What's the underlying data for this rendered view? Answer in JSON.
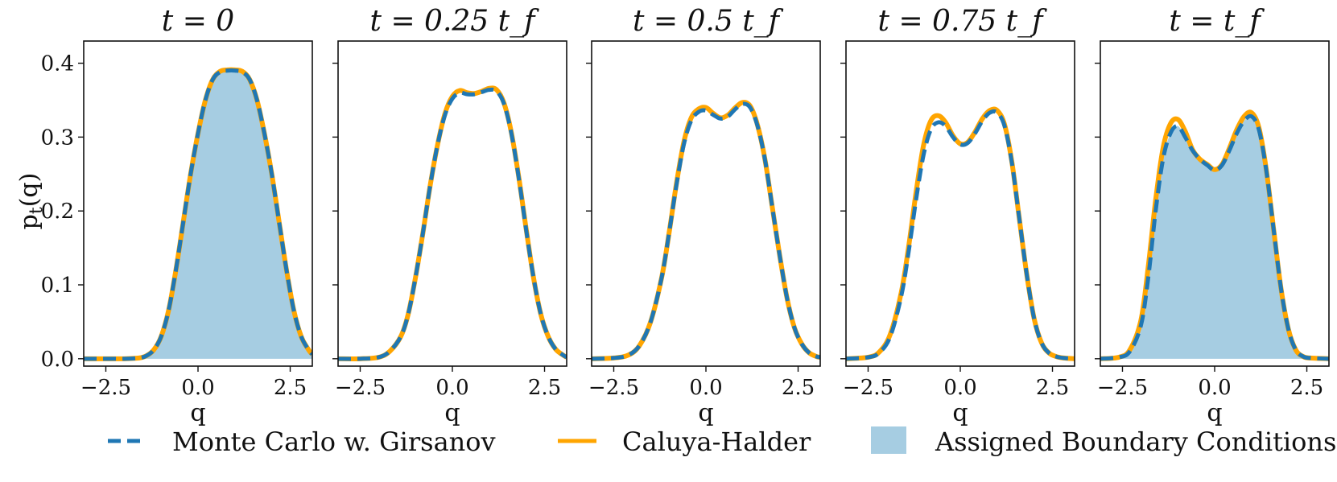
{
  "figure": {
    "ylabel": "p_t(q)",
    "legend": {
      "placement": "bottom",
      "entries": [
        {
          "label": "Monte Carlo w. Girsanov",
          "style": "dashed",
          "color": "#1f77b4"
        },
        {
          "label": "Caluya-Halder",
          "style": "solid",
          "color": "#ffa500"
        },
        {
          "label": "Assigned Boundary Conditions",
          "style": "fill",
          "color": "#a6cde2"
        }
      ]
    }
  },
  "chart_data": [
    {
      "type": "line",
      "title": "t = 0",
      "xlabel": "q",
      "ylabel": "p_t(q)",
      "xlim": [
        -3.1,
        3.1
      ],
      "ylim": [
        -0.01,
        0.43
      ],
      "xticks": [
        -2.5,
        0.0,
        2.5
      ],
      "xtick_labels": [
        "−2.5",
        "0.0",
        "2.5"
      ],
      "yticks": [
        0.0,
        0.1,
        0.2,
        0.3,
        0.4
      ],
      "ytick_labels": [
        "0.0",
        "0.1",
        "0.2",
        "0.3",
        "0.4"
      ],
      "shaded_boundary": true,
      "x": [
        -3.1,
        -2.5,
        -2.0,
        -1.6,
        -1.4,
        -1.2,
        -1.0,
        -0.8,
        -0.6,
        -0.4,
        -0.2,
        0.0,
        0.2,
        0.4,
        0.6,
        0.8,
        1.0,
        1.2,
        1.4,
        1.6,
        1.8,
        2.0,
        2.2,
        2.4,
        2.6,
        2.8,
        3.0,
        3.1
      ],
      "series": [
        {
          "name": "Monte Carlo w. Girsanov",
          "values": [
            0.0,
            0.0,
            0.0,
            0.001,
            0.004,
            0.012,
            0.03,
            0.065,
            0.12,
            0.185,
            0.25,
            0.305,
            0.35,
            0.378,
            0.388,
            0.39,
            0.39,
            0.388,
            0.378,
            0.35,
            0.305,
            0.25,
            0.185,
            0.12,
            0.065,
            0.03,
            0.012,
            0.006
          ]
        },
        {
          "name": "Caluya-Halder",
          "values": [
            0.0,
            0.0,
            0.0,
            0.001,
            0.004,
            0.012,
            0.03,
            0.065,
            0.12,
            0.185,
            0.25,
            0.305,
            0.35,
            0.378,
            0.389,
            0.391,
            0.391,
            0.389,
            0.378,
            0.35,
            0.305,
            0.25,
            0.185,
            0.12,
            0.065,
            0.03,
            0.012,
            0.006
          ]
        }
      ]
    },
    {
      "type": "line",
      "title": "t = 0.25 t_f",
      "xlabel": "q",
      "ylabel": "",
      "xlim": [
        -3.1,
        3.1
      ],
      "ylim": [
        -0.01,
        0.43
      ],
      "xticks": [
        -2.5,
        0.0,
        2.5
      ],
      "xtick_labels": [
        "−2.5",
        "0.0",
        "2.5"
      ],
      "yticks": [
        0.0,
        0.1,
        0.2,
        0.3,
        0.4
      ],
      "ytick_labels": [],
      "shaded_boundary": false,
      "x": [
        -3.1,
        -2.5,
        -2.0,
        -1.7,
        -1.4,
        -1.2,
        -1.0,
        -0.8,
        -0.6,
        -0.4,
        -0.2,
        0.0,
        0.2,
        0.4,
        0.6,
        0.8,
        1.0,
        1.2,
        1.4,
        1.6,
        1.8,
        2.0,
        2.2,
        2.4,
        2.6,
        2.8,
        3.0,
        3.1
      ],
      "series": [
        {
          "name": "Monte Carlo w. Girsanov",
          "values": [
            0.0,
            0.0,
            0.002,
            0.01,
            0.03,
            0.06,
            0.11,
            0.17,
            0.235,
            0.29,
            0.33,
            0.352,
            0.36,
            0.358,
            0.358,
            0.361,
            0.364,
            0.362,
            0.345,
            0.305,
            0.245,
            0.175,
            0.11,
            0.06,
            0.03,
            0.013,
            0.005,
            0.002
          ]
        },
        {
          "name": "Caluya-Halder",
          "values": [
            0.0,
            0.0,
            0.002,
            0.01,
            0.03,
            0.06,
            0.11,
            0.17,
            0.235,
            0.29,
            0.332,
            0.355,
            0.363,
            0.36,
            0.359,
            0.362,
            0.366,
            0.364,
            0.346,
            0.306,
            0.246,
            0.176,
            0.11,
            0.06,
            0.03,
            0.013,
            0.005,
            0.002
          ]
        }
      ]
    },
    {
      "type": "line",
      "title": "t = 0.5 t_f",
      "xlabel": "q",
      "ylabel": "",
      "xlim": [
        -3.1,
        3.1
      ],
      "ylim": [
        -0.01,
        0.43
      ],
      "xticks": [
        -2.5,
        0.0,
        2.5
      ],
      "xtick_labels": [
        "−2.5",
        "0.0",
        "2.5"
      ],
      "yticks": [
        0.0,
        0.1,
        0.2,
        0.3,
        0.4
      ],
      "ytick_labels": [],
      "shaded_boundary": false,
      "x": [
        -3.1,
        -2.5,
        -2.1,
        -1.8,
        -1.5,
        -1.2,
        -1.0,
        -0.8,
        -0.6,
        -0.4,
        -0.2,
        0.0,
        0.2,
        0.4,
        0.6,
        0.8,
        1.0,
        1.2,
        1.4,
        1.6,
        1.8,
        2.0,
        2.2,
        2.4,
        2.6,
        2.8,
        3.0,
        3.1
      ],
      "series": [
        {
          "name": "Monte Carlo w. Girsanov",
          "values": [
            0.0,
            0.001,
            0.005,
            0.018,
            0.05,
            0.11,
            0.17,
            0.235,
            0.29,
            0.322,
            0.334,
            0.336,
            0.33,
            0.325,
            0.328,
            0.338,
            0.345,
            0.34,
            0.315,
            0.27,
            0.205,
            0.14,
            0.082,
            0.042,
            0.02,
            0.008,
            0.003,
            0.002
          ]
        },
        {
          "name": "Caluya-Halder",
          "values": [
            0.0,
            0.001,
            0.005,
            0.018,
            0.05,
            0.11,
            0.17,
            0.237,
            0.293,
            0.326,
            0.338,
            0.34,
            0.332,
            0.326,
            0.33,
            0.34,
            0.347,
            0.342,
            0.316,
            0.27,
            0.205,
            0.14,
            0.082,
            0.042,
            0.02,
            0.008,
            0.003,
            0.002
          ]
        }
      ]
    },
    {
      "type": "line",
      "title": "t = 0.75 t_f",
      "xlabel": "q",
      "ylabel": "",
      "xlim": [
        -3.1,
        3.1
      ],
      "ylim": [
        -0.01,
        0.43
      ],
      "xticks": [
        -2.5,
        0.0,
        2.5
      ],
      "xtick_labels": [
        "−2.5",
        "0.0",
        "2.5"
      ],
      "yticks": [
        0.0,
        0.1,
        0.2,
        0.3,
        0.4
      ],
      "ytick_labels": [],
      "shaded_boundary": false,
      "x": [
        -3.1,
        -2.5,
        -2.2,
        -1.9,
        -1.6,
        -1.4,
        -1.2,
        -1.0,
        -0.8,
        -0.6,
        -0.4,
        -0.2,
        0.0,
        0.2,
        0.4,
        0.6,
        0.8,
        1.0,
        1.2,
        1.4,
        1.6,
        1.8,
        2.0,
        2.2,
        2.4,
        2.6,
        2.8,
        3.1
      ],
      "series": [
        {
          "name": "Monte Carlo w. Girsanov",
          "values": [
            0.0,
            0.002,
            0.008,
            0.03,
            0.085,
            0.145,
            0.215,
            0.275,
            0.31,
            0.32,
            0.315,
            0.3,
            0.29,
            0.292,
            0.305,
            0.322,
            0.333,
            0.333,
            0.315,
            0.265,
            0.19,
            0.115,
            0.055,
            0.022,
            0.008,
            0.003,
            0.001,
            0.0
          ]
        },
        {
          "name": "Caluya-Halder",
          "values": [
            0.0,
            0.002,
            0.009,
            0.033,
            0.09,
            0.152,
            0.225,
            0.288,
            0.322,
            0.329,
            0.32,
            0.302,
            0.291,
            0.293,
            0.307,
            0.325,
            0.336,
            0.336,
            0.317,
            0.266,
            0.19,
            0.115,
            0.055,
            0.022,
            0.008,
            0.003,
            0.001,
            0.0
          ]
        }
      ]
    },
    {
      "type": "line",
      "title": "t = t_f",
      "xlabel": "q",
      "ylabel": "",
      "xlim": [
        -3.1,
        3.1
      ],
      "ylim": [
        -0.01,
        0.43
      ],
      "xticks": [
        -2.5,
        0.0,
        2.5
      ],
      "xtick_labels": [
        "−2.5",
        "0.0",
        "2.5"
      ],
      "yticks": [
        0.0,
        0.1,
        0.2,
        0.3,
        0.4
      ],
      "ytick_labels": [],
      "shaded_boundary": true,
      "x": [
        -3.1,
        -2.6,
        -2.3,
        -2.0,
        -1.8,
        -1.6,
        -1.4,
        -1.2,
        -1.0,
        -0.8,
        -0.6,
        -0.4,
        -0.2,
        0.0,
        0.2,
        0.4,
        0.6,
        0.8,
        1.0,
        1.2,
        1.4,
        1.6,
        1.8,
        2.0,
        2.2,
        2.4,
        2.6,
        3.1
      ],
      "series": [
        {
          "name": "Monte Carlo w. Girsanov",
          "values": [
            0.0,
            0.002,
            0.01,
            0.045,
            0.11,
            0.2,
            0.27,
            0.305,
            0.315,
            0.3,
            0.282,
            0.27,
            0.262,
            0.255,
            0.262,
            0.282,
            0.305,
            0.322,
            0.328,
            0.31,
            0.255,
            0.175,
            0.095,
            0.04,
            0.012,
            0.003,
            0.001,
            0.0
          ]
        },
        {
          "name": "Caluya-Halder",
          "values": [
            0.0,
            0.002,
            0.012,
            0.052,
            0.125,
            0.215,
            0.285,
            0.318,
            0.324,
            0.308,
            0.283,
            0.27,
            0.263,
            0.256,
            0.263,
            0.285,
            0.31,
            0.328,
            0.333,
            0.313,
            0.256,
            0.175,
            0.095,
            0.04,
            0.012,
            0.003,
            0.001,
            0.0
          ]
        }
      ]
    }
  ]
}
